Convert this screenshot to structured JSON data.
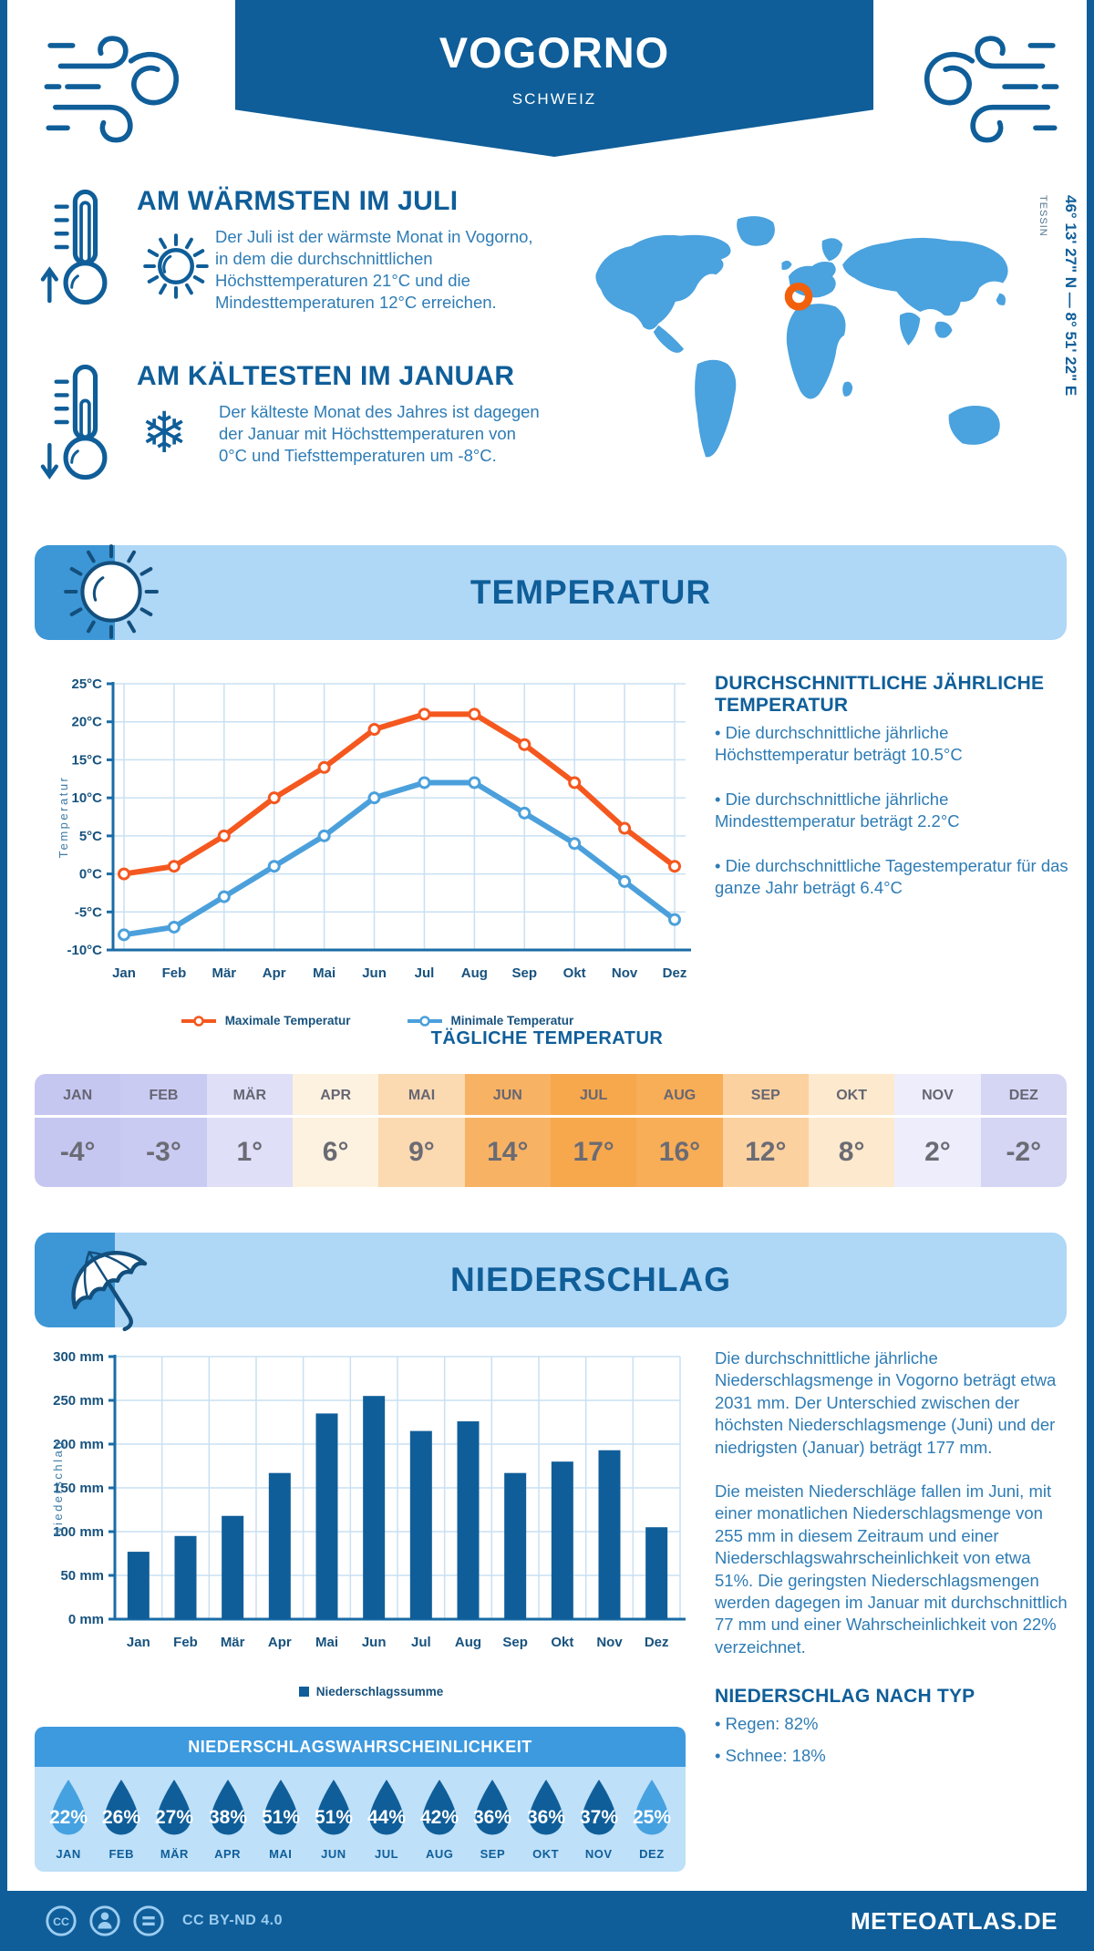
{
  "header": {
    "title": "VOGORNO",
    "subtitle": "SCHWEIZ"
  },
  "warmest": {
    "heading": "AM WÄRMSTEN IM JULI",
    "text": "Der Juli ist der wärmste Monat in Vogorno, in dem die durchschnittlichen Höchsttemperaturen 21°C und die Mindesttemperaturen 12°C erreichen."
  },
  "coldest": {
    "heading": "AM KÄLTESTEN IM JANUAR",
    "text": "Der kälteste Monat des Jahres ist dagegen der Januar mit Höchsttemperaturen von 0°C und Tiefsttemperaturen um -8°C."
  },
  "map": {
    "region_label": "TESSIN",
    "coordinates": "46° 13' 27\" N — 8° 51' 22\" E",
    "map_color": "#4AA2DE",
    "marker_color": "#F2600C"
  },
  "temperature_section": {
    "title": "TEMPERATUR",
    "annual": {
      "heading": "DURCHSCHNITTLICHE JÄHRLICHE TEMPERATUR",
      "bullets": [
        "Die durchschnittliche jährliche Höchsttemperatur beträgt 10.5°C",
        "Die durchschnittliche jährliche Mindesttemperatur beträgt 2.2°C",
        "Die durchschnittliche Tagestemperatur für das ganze Jahr beträgt 6.4°C"
      ]
    },
    "daily": {
      "heading": "TÄGLICHE TEMPERATUR",
      "columns": [
        {
          "month": "JAN",
          "value": "-4°",
          "bg": "#c6c7f1"
        },
        {
          "month": "FEB",
          "value": "-3°",
          "bg": "#cacbf2"
        },
        {
          "month": "MÄR",
          "value": "1°",
          "bg": "#dfdff8"
        },
        {
          "month": "APR",
          "value": "6°",
          "bg": "#fdf2e0"
        },
        {
          "month": "MAI",
          "value": "9°",
          "bg": "#fbd9b1"
        },
        {
          "month": "JUN",
          "value": "14°",
          "bg": "#f8b264"
        },
        {
          "month": "JUL",
          "value": "17°",
          "bg": "#f7a84c"
        },
        {
          "month": "AUG",
          "value": "16°",
          "bg": "#f8ad57"
        },
        {
          "month": "SEP",
          "value": "12°",
          "bg": "#fbd1a0"
        },
        {
          "month": "OKT",
          "value": "8°",
          "bg": "#fde9cd"
        },
        {
          "month": "NOV",
          "value": "2°",
          "bg": "#ededfb"
        },
        {
          "month": "DEZ",
          "value": "-2°",
          "bg": "#d5d5f4"
        }
      ]
    }
  },
  "precipitation_section": {
    "title": "NIEDERSCHLAG",
    "paragraphs": [
      "Die durchschnittliche jährliche Niederschlagsmenge in Vogorno beträgt etwa 2031 mm. Der Unterschied zwischen der höchsten Niederschlagsmenge (Juni) und der niedrigsten (Januar) beträgt 177 mm.",
      "Die meisten Niederschläge fallen im Juni, mit einer monatlichen Niederschlagsmenge von 255 mm in diesem Zeitraum und einer Niederschlagswahrscheinlichkeit von etwa 51%. Die geringsten Niederschlagsmengen werden dagegen im Januar mit durchschnittlich 77 mm und einer Wahrscheinlichkeit von 22% verzeichnet."
    ],
    "by_type": {
      "heading": "NIEDERSCHLAG NACH TYP",
      "items": [
        "Regen: 82%",
        "Schnee: 18%"
      ]
    },
    "probability": {
      "heading": "NIEDERSCHLAGSWAHRSCHEINLICHKEIT",
      "dark_color": "#0F5E99",
      "light_color": "#46A1E0",
      "items": [
        {
          "month": "JAN",
          "value": "22%",
          "variant": "light"
        },
        {
          "month": "FEB",
          "value": "26%",
          "variant": "dark"
        },
        {
          "month": "MÄR",
          "value": "27%",
          "variant": "dark"
        },
        {
          "month": "APR",
          "value": "38%",
          "variant": "dark"
        },
        {
          "month": "MAI",
          "value": "51%",
          "variant": "dark"
        },
        {
          "month": "JUN",
          "value": "51%",
          "variant": "dark"
        },
        {
          "month": "JUL",
          "value": "44%",
          "variant": "dark"
        },
        {
          "month": "AUG",
          "value": "42%",
          "variant": "dark"
        },
        {
          "month": "SEP",
          "value": "36%",
          "variant": "dark"
        },
        {
          "month": "OKT",
          "value": "36%",
          "variant": "dark"
        },
        {
          "month": "NOV",
          "value": "37%",
          "variant": "dark"
        },
        {
          "month": "DEZ",
          "value": "25%",
          "variant": "light"
        }
      ]
    }
  },
  "footer": {
    "license": "CC BY-ND 4.0",
    "site": "METEOATLAS.DE"
  },
  "chart_data": [
    {
      "type": "line",
      "title": "TEMPERATUR",
      "x": [
        "Jan",
        "Feb",
        "Mär",
        "Apr",
        "Mai",
        "Jun",
        "Jul",
        "Aug",
        "Sep",
        "Okt",
        "Nov",
        "Dez"
      ],
      "ylabel": "Temperatur",
      "ylim": [
        -10,
        25
      ],
      "ytick_step": 5,
      "yticks": [
        "25°C",
        "20°C",
        "15°C",
        "10°C",
        "5°C",
        "0°C",
        "-5°C",
        "-10°C"
      ],
      "grid": true,
      "legend_position": "bottom",
      "series": [
        {
          "name": "Maximale Temperatur",
          "color": "#F4581F",
          "values": [
            0,
            1,
            5,
            10,
            14,
            19,
            21,
            21,
            17,
            12,
            6,
            1
          ]
        },
        {
          "name": "Minimale Temperatur",
          "color": "#4BA0DB",
          "values": [
            -8,
            -7,
            -3,
            1,
            5,
            10,
            12,
            12,
            8,
            4,
            -1,
            -6
          ]
        }
      ]
    },
    {
      "type": "bar",
      "title": "NIEDERSCHLAG",
      "categories": [
        "Jan",
        "Feb",
        "Mär",
        "Apr",
        "Mai",
        "Jun",
        "Jul",
        "Aug",
        "Sep",
        "Okt",
        "Nov",
        "Dez"
      ],
      "values": [
        77,
        95,
        118,
        167,
        235,
        255,
        215,
        226,
        167,
        180,
        193,
        105
      ],
      "ylabel": "Niederschlag",
      "ylim": [
        0,
        300
      ],
      "ytick_step": 50,
      "yticks": [
        "300 mm",
        "250 mm",
        "200 mm",
        "150 mm",
        "100 mm",
        "50 mm",
        "0 mm"
      ],
      "grid": true,
      "legend": "Niederschlagssumme",
      "bar_color": "#0F5E99"
    }
  ]
}
